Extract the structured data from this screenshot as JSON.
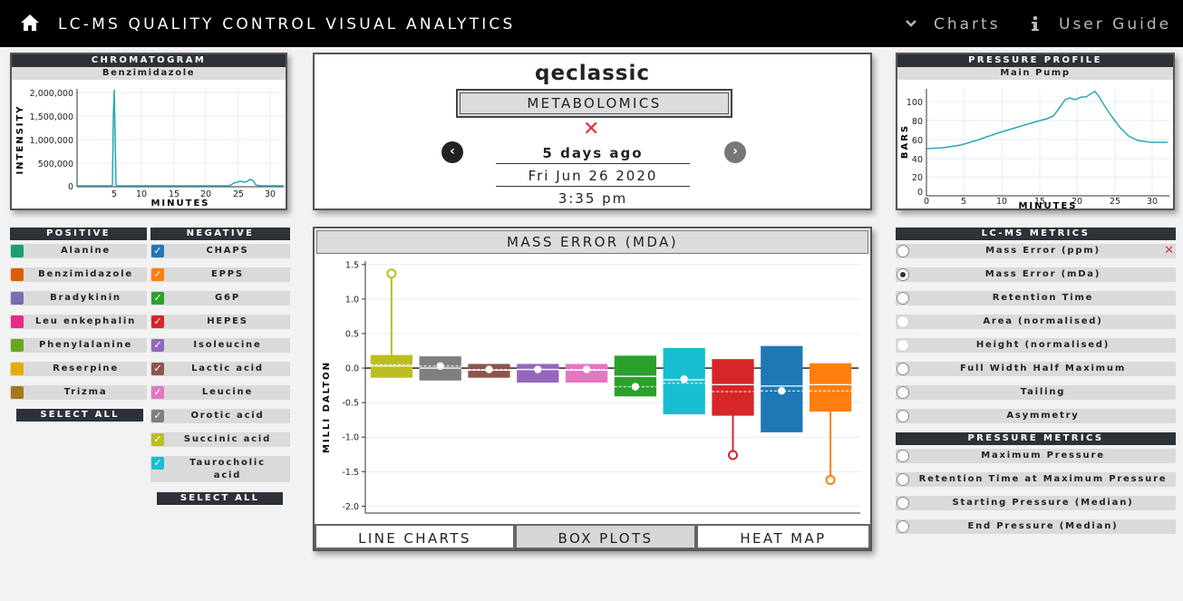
{
  "header": {
    "title": "LC-MS QUALITY CONTROL VISUAL ANALYTICS",
    "nav": [
      {
        "label": "Charts",
        "icon": "chevron-down-icon"
      },
      {
        "label": "User Guide",
        "icon": "info-icon"
      }
    ],
    "home_icon": "home-icon"
  },
  "chromatogram": {
    "title": "CHROMATOGRAM",
    "compound": "Benzimidazole",
    "ylabel": "INTENSITY",
    "xlabel": "MINUTES",
    "yticks": [
      "2,000,000",
      "1,500,000",
      "1,000,000",
      "500,000",
      "0"
    ],
    "xticks": [
      "5",
      "10",
      "15",
      "20",
      "25",
      "30"
    ],
    "color": "#29a9b5"
  },
  "pressure": {
    "title": "PRESSURE PROFILE",
    "subtitle": "Main Pump",
    "ylabel": "BARS",
    "xlabel": "MINUTES",
    "yticks": [
      "100",
      "80",
      "60",
      "40",
      "20",
      "0"
    ],
    "xticks": [
      "0",
      "5",
      "10",
      "15",
      "20",
      "25",
      "30"
    ],
    "color": "#29a9b5"
  },
  "run": {
    "name": "qeclassic",
    "mode": "METABOLOMICS",
    "status_icon": "x-icon",
    "relative": "5 days ago",
    "date": "Fri Jun 26 2020",
    "time": "3:35 pm",
    "prev_icon": "chevron-left-icon",
    "next_icon": "chevron-right-icon"
  },
  "compounds": {
    "positive_title": "POSITIVE",
    "negative_title": "NEGATIVE",
    "select_all": "SELECT ALL",
    "positive": [
      {
        "name": "Alanine",
        "color": "#1b9e77"
      },
      {
        "name": "Benzimidazole",
        "color": "#d95f02"
      },
      {
        "name": "Bradykinin",
        "color": "#7570b3"
      },
      {
        "name": "Leu enkephalin",
        "color": "#e7298a"
      },
      {
        "name": "Phenylalanine",
        "color": "#66a61e"
      },
      {
        "name": "Reserpine",
        "color": "#e6ab02"
      },
      {
        "name": "Trizma",
        "color": "#a6761d"
      }
    ],
    "negative": [
      {
        "name": "CHAPS",
        "color": "#1f78b4"
      },
      {
        "name": "EPPS",
        "color": "#ff7f0e"
      },
      {
        "name": "G6P",
        "color": "#2ca02c"
      },
      {
        "name": "HEPES",
        "color": "#d62728"
      },
      {
        "name": "Isoleucine",
        "color": "#9467bd"
      },
      {
        "name": "Lactic acid",
        "color": "#8c564b"
      },
      {
        "name": "Leucine",
        "color": "#e377c2"
      },
      {
        "name": "Orotic acid",
        "color": "#7f7f7f"
      },
      {
        "name": "Succinic acid",
        "color": "#bcbd22"
      },
      {
        "name": "Taurocholic acid",
        "color": "#17becf"
      }
    ]
  },
  "lcms_metrics": {
    "title": "LC-MS METRICS",
    "items": [
      {
        "label": "Mass Error (ppm)",
        "state": "unselected",
        "flag": "x-icon"
      },
      {
        "label": "Mass Error (mDa)",
        "state": "selected"
      },
      {
        "label": "Retention Time",
        "state": "unselected"
      },
      {
        "label": "Area (normalised)",
        "state": "disabled"
      },
      {
        "label": "Height (normalised)",
        "state": "disabled"
      },
      {
        "label": "Full Width Half Maximum",
        "state": "unselected"
      },
      {
        "label": "Tailing",
        "state": "unselected"
      },
      {
        "label": "Asymmetry",
        "state": "unselected"
      }
    ]
  },
  "pressure_metrics": {
    "title": "PRESSURE METRICS",
    "items": [
      {
        "label": "Maximum Pressure",
        "state": "unselected"
      },
      {
        "label": "Retention Time at Maximum Pressure",
        "state": "unselected"
      },
      {
        "label": "Starting Pressure (Median)",
        "state": "unselected"
      },
      {
        "label": "End Pressure (Median)",
        "state": "unselected"
      }
    ]
  },
  "mass_error": {
    "title": "MASS ERROR (MDA)",
    "tabs": [
      {
        "label": "LINE CHARTS",
        "active": false
      },
      {
        "label": "BOX PLOTS",
        "active": true
      },
      {
        "label": "HEAT MAP",
        "active": false
      }
    ]
  },
  "chart_data": {
    "type": "box",
    "ylabel": "MILLI DALTON",
    "ylim": [
      -2.1,
      1.55
    ],
    "yticks": [
      1.5,
      1.0,
      0.5,
      0.0,
      -0.5,
      -1.0,
      -1.5,
      -2.0
    ],
    "grid": true,
    "series": [
      {
        "color": "#bcbd22",
        "q1": -0.14,
        "q3": 0.19,
        "median": 0.03,
        "mean": 0.05,
        "point": 1.37,
        "outlier_dir": "up"
      },
      {
        "color": "#7f7f7f",
        "q1": -0.18,
        "q3": 0.17,
        "median": 0.0,
        "mean": 0.03,
        "point": 0.03
      },
      {
        "color": "#8c564b",
        "q1": -0.14,
        "q3": 0.06,
        "median": -0.03,
        "mean": -0.02,
        "point": -0.02
      },
      {
        "color": "#9467bd",
        "q1": -0.21,
        "q3": 0.06,
        "median": -0.02,
        "mean": -0.02,
        "point": -0.02
      },
      {
        "color": "#e377c2",
        "q1": -0.21,
        "q3": 0.06,
        "median": -0.03,
        "mean": -0.02,
        "point": -0.02
      },
      {
        "color": "#2ca02c",
        "q1": -0.41,
        "q3": 0.18,
        "median": -0.12,
        "mean": -0.27,
        "point": -0.27
      },
      {
        "color": "#17becf",
        "q1": -0.67,
        "q3": 0.29,
        "median": -0.17,
        "mean": -0.22,
        "point": -0.16
      },
      {
        "color": "#d62728",
        "q1": -0.69,
        "q3": 0.13,
        "median": -0.24,
        "mean": -0.34,
        "point": -1.26,
        "outlier_dir": "down"
      },
      {
        "color": "#1f78b4",
        "q1": -0.93,
        "q3": 0.32,
        "median": -0.26,
        "mean": -0.33,
        "point": -0.33
      },
      {
        "color": "#ff7f0e",
        "q1": -0.63,
        "q3": 0.07,
        "median": -0.24,
        "mean": -0.33,
        "point": -1.62,
        "outlier_dir": "down"
      }
    ]
  }
}
